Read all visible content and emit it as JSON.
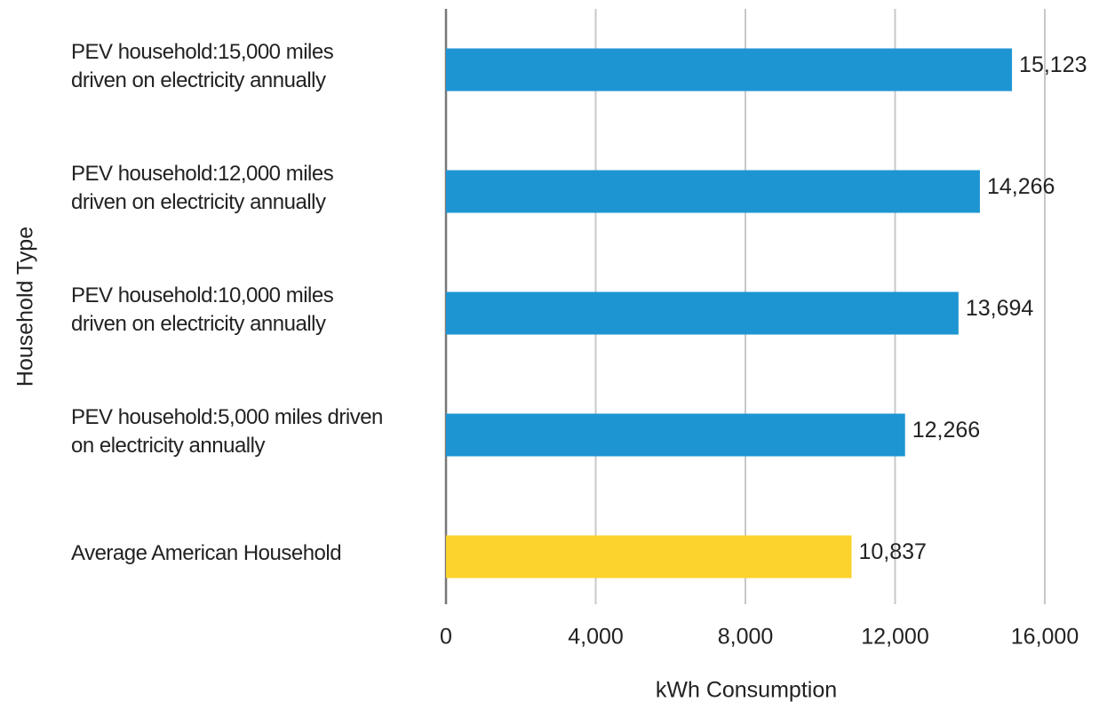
{
  "chart_data": {
    "type": "barh",
    "categories": [
      "PEV household:15,000 miles driven on electricity annually",
      "PEV household:12,000 miles driven on electricity annually",
      "PEV household:10,000 miles driven on electricity annually",
      "PEV household:5,000 miles driven on electricity annually",
      "Average American Household"
    ],
    "values": [
      15123,
      14266,
      13694,
      12266,
      10837
    ],
    "value_labels": [
      "15,123",
      "14,266",
      "13,694",
      "12,266",
      "10,837"
    ],
    "colors": [
      "#1e95d3",
      "#1e95d3",
      "#1e95d3",
      "#1e95d3",
      "#fcd22c"
    ],
    "xlim": [
      0,
      16000
    ],
    "xticks": [
      0,
      {
        "value": 4000,
        "label": "4,000"
      },
      {
        "value": 8000,
        "label": "8,000"
      },
      {
        "value": 12000,
        "label": "12,000"
      },
      {
        "value": 16000,
        "label": "16,000"
      }
    ],
    "xlabel": "kWh Consumption",
    "ylabel": "Household Type",
    "grid": true
  }
}
